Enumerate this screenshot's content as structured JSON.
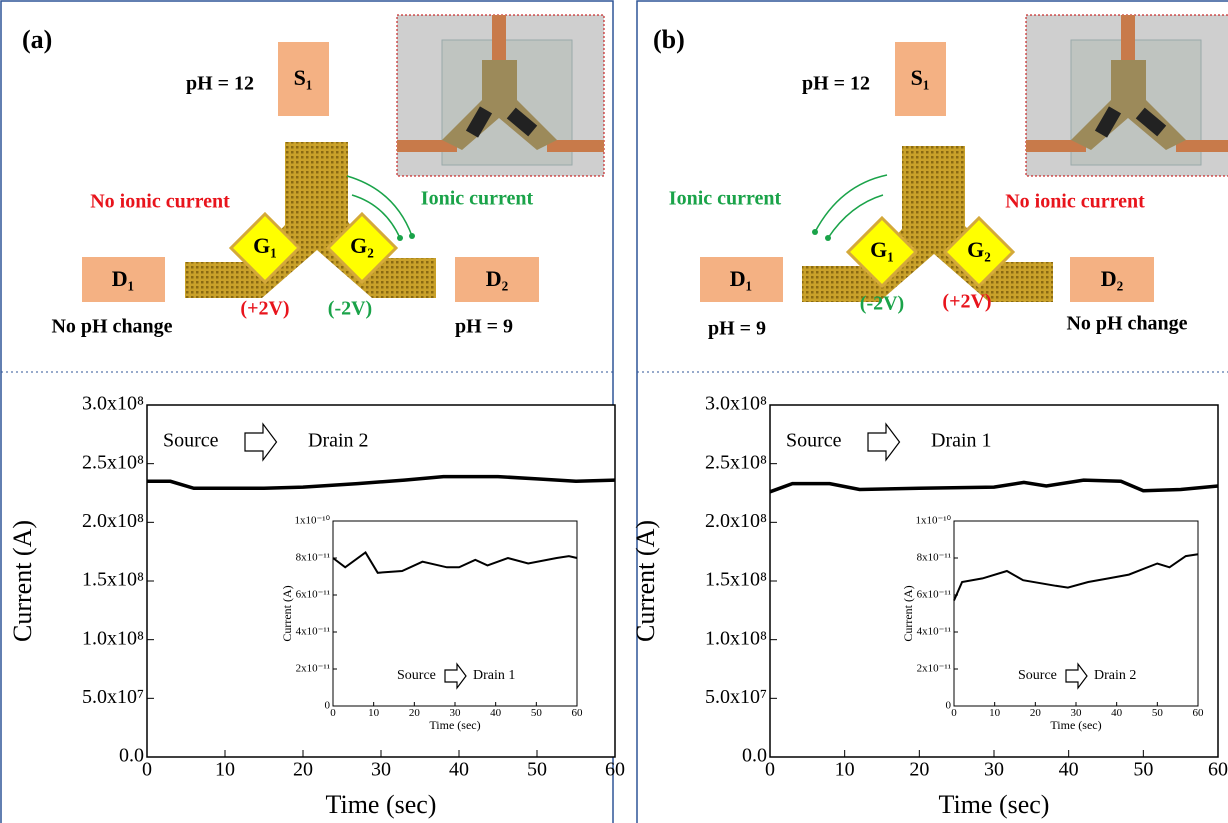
{
  "panels": [
    {
      "label": "(a)",
      "source": "S₁",
      "drain_left": "D₁",
      "drain_right": "D₂",
      "gate_left": "G₁",
      "gate_right": "G₂",
      "source_ph": "pH = 12",
      "left_status": "No ionic current",
      "right_status": "Ionic current",
      "left_voltage": "(+2V)",
      "right_voltage": "(-2V)",
      "left_ph": "No pH change",
      "right_ph": "pH = 9"
    },
    {
      "label": "(b)",
      "source": "S₁",
      "drain_left": "D₁",
      "drain_right": "D₂",
      "gate_left": "G₁",
      "gate_right": "G₂",
      "source_ph": "pH = 12",
      "left_status": "Ionic current",
      "right_status": "No ionic current",
      "left_voltage": "(-2V)",
      "right_voltage": "(+2V)",
      "left_ph": "pH = 9",
      "right_ph": "No pH change"
    }
  ],
  "chart_data": [
    {
      "type": "line",
      "xlabel": "Time (sec)",
      "ylabel": "Current (A)",
      "annotation_from": "Source",
      "annotation_to": "Drain 2",
      "x": [
        0,
        3,
        6,
        15,
        20,
        27,
        33,
        38,
        45,
        50,
        55,
        60
      ],
      "series": [
        {
          "color": "#000000",
          "values": [
            235000000,
            235000000,
            229000000,
            229000000,
            230000000,
            233000000,
            236000000,
            239000000,
            239000000,
            237000000,
            235000000,
            236000000
          ]
        }
      ],
      "xlim": [
        0,
        60
      ],
      "ylim": [
        0,
        300000000
      ],
      "xticks": [
        0,
        10,
        20,
        30,
        40,
        50,
        60
      ],
      "yticks": [
        {
          "value": 0,
          "label": "0.0"
        },
        {
          "value": 50000000,
          "label": "5.0x10⁷"
        },
        {
          "value": 100000000,
          "label": "1.0x10⁸"
        },
        {
          "value": 150000000,
          "label": "1.5x10⁸"
        },
        {
          "value": 200000000,
          "label": "2.0x10⁸"
        },
        {
          "value": 250000000,
          "label": "2.5x10⁸"
        },
        {
          "value": 300000000,
          "label": "3.0x10⁸"
        }
      ]
    },
    {
      "type": "line",
      "xlabel": "Time (sec)",
      "ylabel": "Current (A)",
      "annotation_from": "Source",
      "annotation_to": "Drain 1",
      "x": [
        0,
        3,
        8,
        11,
        17,
        22,
        28,
        31,
        35,
        38,
        43,
        48,
        55,
        58,
        60
      ],
      "series": [
        {
          "color": "#000000",
          "values": [
            8e-11,
            7.5e-11,
            8.3e-11,
            7.2e-11,
            7.3e-11,
            7.8e-11,
            7.5e-11,
            7.5e-11,
            7.9e-11,
            7.6e-11,
            8e-11,
            7.7e-11,
            8e-11,
            8.1e-11,
            8e-11
          ]
        }
      ],
      "xlim": [
        0,
        60
      ],
      "ylim": [
        0,
        1e-10
      ],
      "xticks": [
        0,
        10,
        20,
        30,
        40,
        50,
        60
      ],
      "yticks": [
        0,
        {
          "value": 2e-11,
          "label": "2x10⁻¹¹"
        },
        {
          "value": 4e-11,
          "label": "4x10⁻¹¹"
        },
        {
          "value": 6e-11,
          "label": "6x10⁻¹¹"
        },
        {
          "value": 8e-11,
          "label": "8x10⁻¹¹"
        },
        {
          "value": 1e-10,
          "label": "1x10⁻¹⁰"
        }
      ]
    },
    {
      "type": "line",
      "xlabel": "Time (sec)",
      "ylabel": "Current (A)",
      "annotation_from": "Source",
      "annotation_to": "Drain 1",
      "x": [
        0,
        3,
        8,
        12,
        20,
        30,
        34,
        37,
        42,
        47,
        50,
        55,
        60
      ],
      "series": [
        {
          "color": "#000000",
          "values": [
            226000000,
            233000000,
            233000000,
            228000000,
            229000000,
            230000000,
            234000000,
            231000000,
            236000000,
            235000000,
            227000000,
            228000000,
            231000000
          ]
        }
      ],
      "xlim": [
        0,
        60
      ],
      "ylim": [
        0,
        300000000
      ],
      "xticks": [
        0,
        10,
        20,
        30,
        40,
        50,
        60
      ],
      "yticks": [
        {
          "value": 0,
          "label": "0.0"
        },
        {
          "value": 50000000,
          "label": "5.0x10⁷"
        },
        {
          "value": 100000000,
          "label": "1.0x10⁸"
        },
        {
          "value": 150000000,
          "label": "1.5x10⁸"
        },
        {
          "value": 200000000,
          "label": "2.0x10⁸"
        },
        {
          "value": 250000000,
          "label": "2.5x10⁸"
        },
        {
          "value": 300000000,
          "label": "3.0x10⁸"
        }
      ]
    },
    {
      "type": "line",
      "xlabel": "Time (sec)",
      "ylabel": "Current (A)",
      "annotation_from": "Source",
      "annotation_to": "Drain 2",
      "x": [
        0,
        2,
        7,
        13,
        17,
        25,
        28,
        33,
        38,
        43,
        50,
        53,
        57,
        60
      ],
      "series": [
        {
          "color": "#000000",
          "values": [
            5.7e-11,
            6.7e-11,
            6.9e-11,
            7.3e-11,
            6.8e-11,
            6.5e-11,
            6.4e-11,
            6.7e-11,
            6.9e-11,
            7.1e-11,
            7.7e-11,
            7.5e-11,
            8.1e-11,
            8.2e-11
          ]
        }
      ],
      "xlim": [
        0,
        60
      ],
      "ylim": [
        0,
        1e-10
      ],
      "xticks": [
        0,
        10,
        20,
        30,
        40,
        50,
        60
      ],
      "yticks": [
        0,
        {
          "value": 2e-11,
          "label": "2x10⁻¹¹"
        },
        {
          "value": 4e-11,
          "label": "4x10⁻¹¹"
        },
        {
          "value": 6e-11,
          "label": "6x10⁻¹¹"
        },
        {
          "value": 8e-11,
          "label": "8x10⁻¹¹"
        },
        {
          "value": 1e-10,
          "label": "1x10⁻¹⁰"
        }
      ]
    }
  ]
}
